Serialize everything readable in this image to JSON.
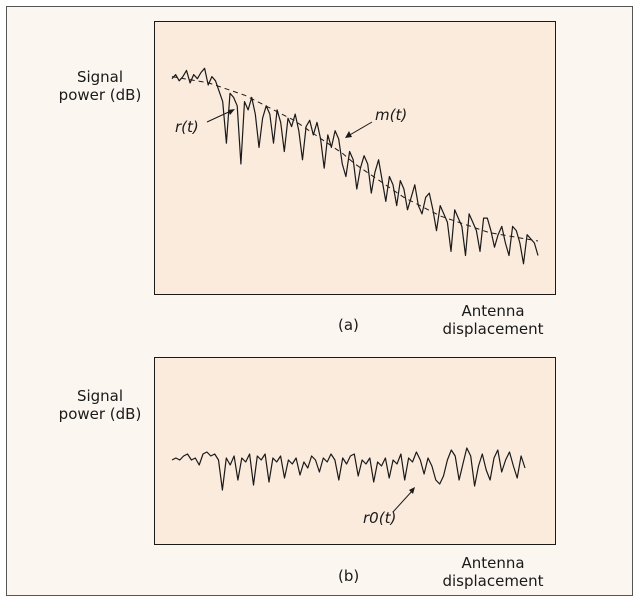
{
  "chart_data": [
    {
      "type": "line",
      "label": "(a)",
      "ylabel": "Signal power (dB)",
      "xlabel": "Antenna displacement",
      "annotations": [
        {
          "text": "r(t)",
          "series": "r(t)"
        },
        {
          "text": "m(t)",
          "series": "m(t)"
        }
      ],
      "series": [
        {
          "name": "r(t)",
          "style": "solid",
          "values": [
            91,
            93,
            90,
            92,
            95,
            89,
            93,
            91,
            94,
            96,
            88,
            92,
            90,
            85,
            80,
            60,
            84,
            82,
            78,
            50,
            80,
            76,
            82,
            74,
            58,
            72,
            78,
            74,
            60,
            76,
            70,
            56,
            72,
            68,
            74,
            66,
            52,
            68,
            71,
            64,
            70,
            62,
            48,
            64,
            58,
            66,
            62,
            50,
            44,
            56,
            52,
            38,
            48,
            54,
            50,
            36,
            46,
            52,
            42,
            32,
            44,
            40,
            30,
            42,
            38,
            28,
            34,
            40,
            30,
            26,
            34,
            36,
            28,
            18,
            30,
            26,
            22,
            8,
            28,
            24,
            20,
            6,
            26,
            22,
            18,
            8,
            24,
            24,
            18,
            10,
            16,
            20,
            12,
            6,
            20,
            18,
            12,
            2,
            16,
            14,
            12,
            6
          ]
        },
        {
          "name": "m(t)",
          "style": "dashed",
          "values": [
            92,
            91,
            90,
            89,
            87,
            85,
            83,
            80,
            77,
            74,
            71,
            67,
            63,
            59,
            55,
            50,
            46,
            42,
            38,
            34,
            31,
            28,
            25,
            23,
            21,
            19,
            17,
            16,
            15,
            14,
            13
          ]
        }
      ]
    },
    {
      "type": "line",
      "label": "(b)",
      "ylabel": "Signal power (dB)",
      "xlabel": "Antenna displacement",
      "annotations": [
        {
          "text": "r0(t)",
          "series": "r0(t)"
        }
      ],
      "series": [
        {
          "name": "r0(t)",
          "style": "solid",
          "values": [
            60,
            62,
            60,
            64,
            66,
            60,
            62,
            55,
            66,
            68,
            64,
            66,
            60,
            30,
            62,
            55,
            64,
            40,
            62,
            58,
            66,
            35,
            64,
            60,
            66,
            38,
            62,
            58,
            64,
            42,
            60,
            56,
            62,
            45,
            58,
            52,
            64,
            60,
            48,
            62,
            58,
            66,
            60,
            40,
            62,
            56,
            64,
            66,
            44,
            60,
            56,
            62,
            38,
            58,
            54,
            62,
            42,
            60,
            56,
            66,
            40,
            62,
            58,
            68,
            60,
            46,
            62,
            54,
            40,
            36,
            44,
            60,
            70,
            64,
            40,
            56,
            72,
            64,
            34,
            54,
            66,
            50,
            40,
            62,
            70,
            48,
            60,
            68,
            54,
            42,
            64,
            52
          ]
        }
      ]
    }
  ]
}
